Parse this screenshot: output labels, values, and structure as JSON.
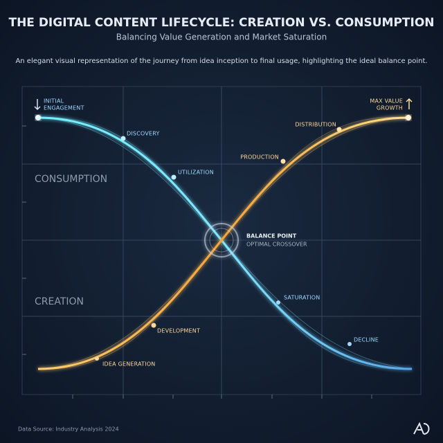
{
  "header": {
    "title": "THE DIGITAL CONTENT LIFECYCLE: CREATION VS. CONSUMPTION",
    "subtitle": "Balancing Value Generation and Market Saturation",
    "description": "An elegant visual representation of the journey from idea inception to final usage, highlighting the ideal balance point."
  },
  "regions": {
    "top": "CONSUMPTION",
    "bottom": "CREATION"
  },
  "consumption_curve": {
    "points": [
      "INITIAL",
      "ENGAGEMENT",
      "DISCOVERY",
      "UTILIZATION",
      "SATURATION",
      "DECLINE"
    ]
  },
  "creation_curve": {
    "points": [
      "IDEA GENERATION",
      "DEVELOPMENT",
      "PRODUCTION",
      "DISTRIBUTION",
      "MAX VALUE",
      "GROWTH"
    ]
  },
  "balance_point": {
    "label": "BALANCE POINT",
    "sublabel": "OPTIMAL CROSSOVER"
  },
  "footer": {
    "source": "Data Source: Industry Analysis 2024"
  }
}
